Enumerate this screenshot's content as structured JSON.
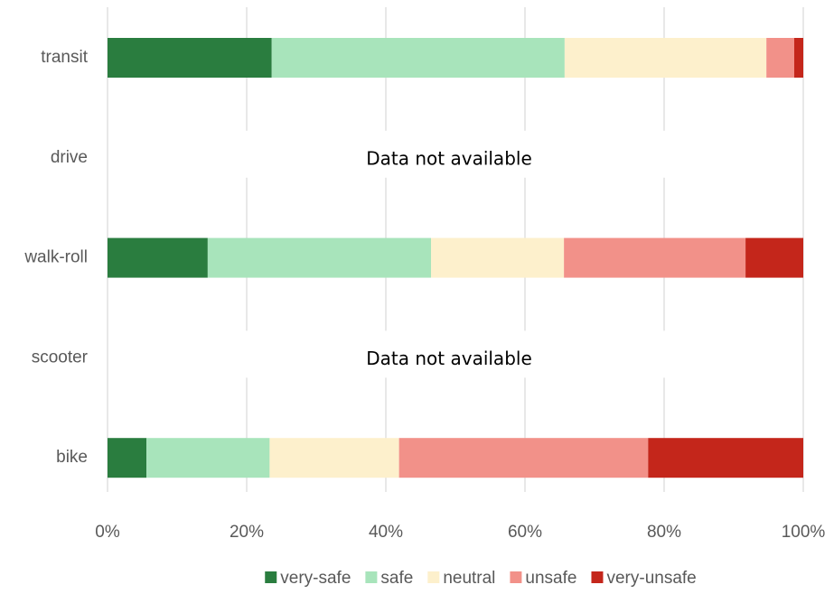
{
  "chart_data": {
    "type": "stacked-bar-horizontal",
    "categories": [
      "transit",
      "drive",
      "walk-roll",
      "scooter",
      "bike"
    ],
    "series": [
      {
        "name": "very-safe",
        "color": "#2a7d3f",
        "values": [
          23.6,
          null,
          14.4,
          null,
          5.6
        ]
      },
      {
        "name": "safe",
        "color": "#a8e4bb",
        "values": [
          42.1,
          null,
          32.1,
          null,
          17.7
        ]
      },
      {
        "name": "neutral",
        "color": "#fdf0cc",
        "values": [
          29.0,
          null,
          19.1,
          null,
          18.6
        ]
      },
      {
        "name": "unsafe",
        "color": "#f29189",
        "values": [
          4.0,
          null,
          26.1,
          null,
          35.8
        ]
      },
      {
        "name": "very-unsafe",
        "color": "#c4261b",
        "values": [
          1.3,
          null,
          8.3,
          null,
          22.3
        ]
      }
    ],
    "annotations": [
      "Data not available",
      "Data not available"
    ],
    "xlim": [
      0,
      100
    ],
    "xticks": [
      {
        "value": 0,
        "label": "0%"
      },
      {
        "value": 20,
        "label": "20%"
      },
      {
        "value": 40,
        "label": "40%"
      },
      {
        "value": 60,
        "label": "60%"
      },
      {
        "value": 80,
        "label": "80%"
      },
      {
        "value": 100,
        "label": "100%"
      }
    ],
    "grid": true,
    "legend": "bottom"
  }
}
